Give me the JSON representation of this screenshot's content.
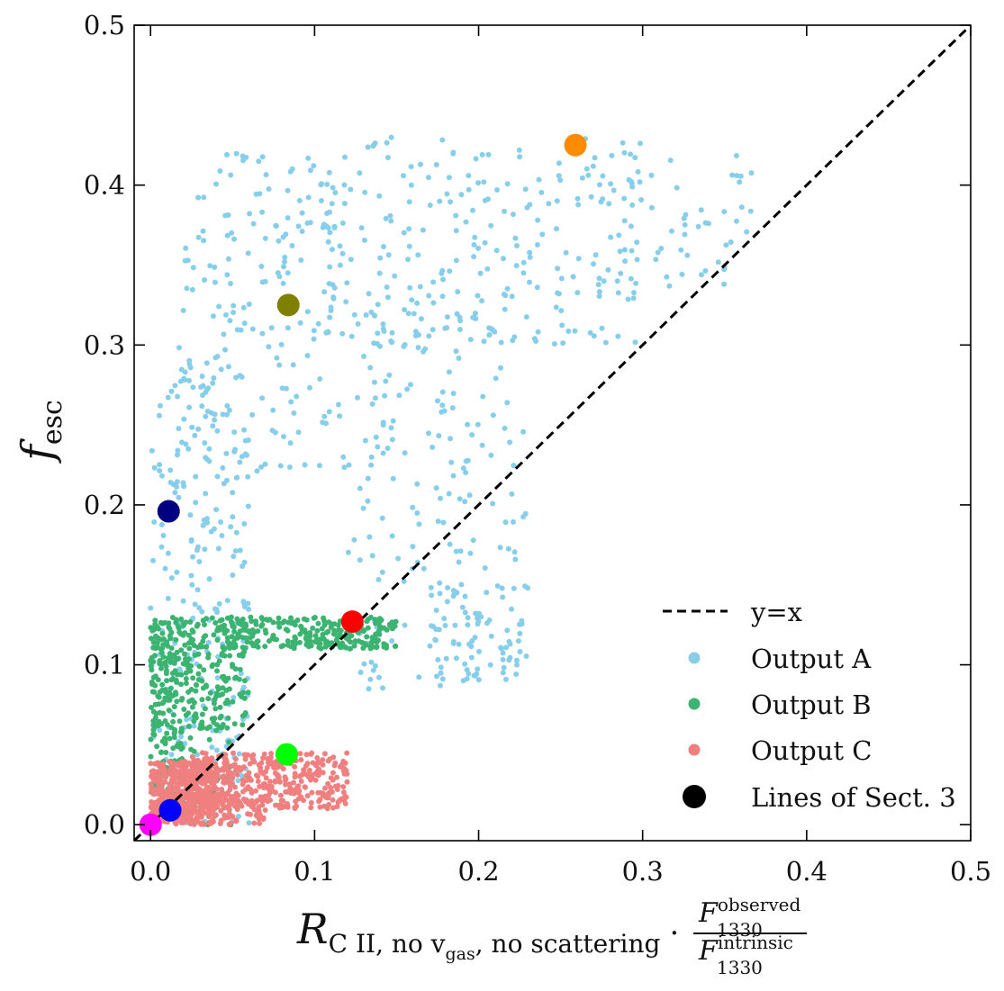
{
  "chart_data": {
    "type": "scatter",
    "title": "",
    "xlim": [
      -0.01,
      0.5
    ],
    "ylim": [
      -0.01,
      0.5
    ],
    "xticks": [
      0.0,
      0.1,
      0.2,
      0.3,
      0.4,
      0.5
    ],
    "yticks": [
      0.0,
      0.1,
      0.2,
      0.3,
      0.4,
      0.5
    ],
    "xtick_labels": [
      "0.0",
      "0.1",
      "0.2",
      "0.3",
      "0.4",
      "0.5"
    ],
    "ytick_labels": [
      "0.0",
      "0.1",
      "0.2",
      "0.3",
      "0.4",
      "0.5"
    ],
    "xlabel": {
      "symbol": "R",
      "subscript": "C II, no v",
      "sub_subscript": "gas",
      "subscript_rest": ", no scattering",
      "dot": "·",
      "frac_num_symbol": "F",
      "frac_num_sup": "observed",
      "frac_num_sub": "1330",
      "frac_den_symbol": "F",
      "frac_den_sup": "intrinsic",
      "frac_den_sub": "1330"
    },
    "ylabel": {
      "symbol": "f",
      "subscript": "esc"
    },
    "grid": false,
    "legend_position": "lower-right",
    "reference_line": {
      "name": "y=x",
      "style": "dashed",
      "color": "#000000",
      "x": [
        -0.01,
        0.5
      ],
      "y": [
        -0.01,
        0.5
      ]
    },
    "series": [
      {
        "name": "Output A",
        "color": "#87CEEB",
        "kind": "cloud",
        "clusters": [
          {
            "x": [
              0.0,
              0.06
            ],
            "y": [
              0.0,
              0.3
            ],
            "n": 260
          },
          {
            "x": [
              0.02,
              0.12
            ],
            "y": [
              0.22,
              0.42
            ],
            "n": 170
          },
          {
            "x": [
              0.1,
              0.3
            ],
            "y": [
              0.3,
              0.43
            ],
            "n": 230
          },
          {
            "x": [
              0.12,
              0.23
            ],
            "y": [
              0.15,
              0.32
            ],
            "n": 140
          },
          {
            "x": [
              0.17,
              0.23
            ],
            "y": [
              0.09,
              0.15
            ],
            "n": 90
          },
          {
            "x": [
              0.12,
              0.19
            ],
            "y": [
              0.08,
              0.13
            ],
            "n": 25
          },
          {
            "x": [
              0.26,
              0.37
            ],
            "y": [
              0.33,
              0.42
            ],
            "n": 60
          }
        ]
      },
      {
        "name": "Output B",
        "color": "#3CB371",
        "kind": "cloud",
        "clusters": [
          {
            "x": [
              0.0,
              0.02
            ],
            "y": [
              0.02,
              0.13
            ],
            "n": 220
          },
          {
            "x": [
              0.02,
              0.06
            ],
            "y": [
              0.06,
              0.13
            ],
            "n": 160
          },
          {
            "x": [
              0.04,
              0.15
            ],
            "y": [
              0.11,
              0.13
            ],
            "n": 260
          },
          {
            "x": [
              0.02,
              0.05
            ],
            "y": [
              0.0,
              0.07
            ],
            "n": 40
          }
        ]
      },
      {
        "name": "Output C",
        "color": "#F08080",
        "kind": "cloud",
        "clusters": [
          {
            "x": [
              0.0,
              0.04
            ],
            "y": [
              0.0,
              0.04
            ],
            "n": 420
          },
          {
            "x": [
              0.02,
              0.12
            ],
            "y": [
              0.01,
              0.045
            ],
            "n": 380
          },
          {
            "x": [
              0.0,
              0.07
            ],
            "y": [
              0.0,
              0.02
            ],
            "n": 160
          }
        ]
      },
      {
        "name": "Lines of Sect. 3",
        "color": "#000000",
        "kind": "highlight",
        "points": [
          {
            "x": 0.259,
            "y": 0.425,
            "color": "#FF8C00"
          },
          {
            "x": 0.084,
            "y": 0.325,
            "color": "#808000"
          },
          {
            "x": 0.011,
            "y": 0.196,
            "color": "#000080"
          },
          {
            "x": 0.123,
            "y": 0.127,
            "color": "#FF0000"
          },
          {
            "x": 0.083,
            "y": 0.044,
            "color": "#00FF00"
          },
          {
            "x": 0.012,
            "y": 0.009,
            "color": "#0000FF"
          },
          {
            "x": 0.0,
            "y": 0.0,
            "color": "#FF00FF"
          }
        ]
      }
    ]
  }
}
